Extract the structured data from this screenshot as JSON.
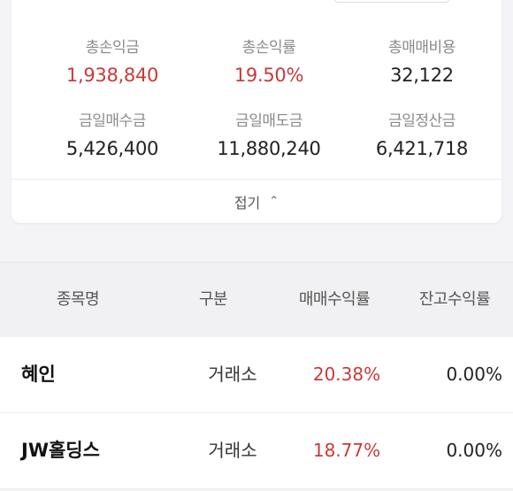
{
  "summary": {
    "total_profit": {
      "label": "총손익금",
      "value": "1,938,840"
    },
    "total_return": {
      "label": "총손익률",
      "value": "19.50%"
    },
    "total_fee": {
      "label": "총매매비용",
      "value": "32,122"
    },
    "today_buy": {
      "label": "금일매수금",
      "value": "5,426,400"
    },
    "today_sell": {
      "label": "금일매도금",
      "value": "11,880,240"
    },
    "today_settle": {
      "label": "금일정산금",
      "value": "6,421,718"
    },
    "collapse_label": "접기"
  },
  "table": {
    "headers": {
      "name": "종목명",
      "market": "구분",
      "trade_return": "매매수익률",
      "hold_return": "잔고수익률"
    },
    "rows": [
      {
        "name": "혜인",
        "market": "거래소",
        "trade_return": "20.38%",
        "hold_return": "0.00%"
      },
      {
        "name": "JW홀딩스",
        "market": "거래소",
        "trade_return": "18.77%",
        "hold_return": "0.00%"
      }
    ]
  },
  "colors": {
    "profit_red": "#c93a3a",
    "background": "#f4f4f6"
  },
  "icons": {
    "collapse": "chevron-up-icon"
  }
}
